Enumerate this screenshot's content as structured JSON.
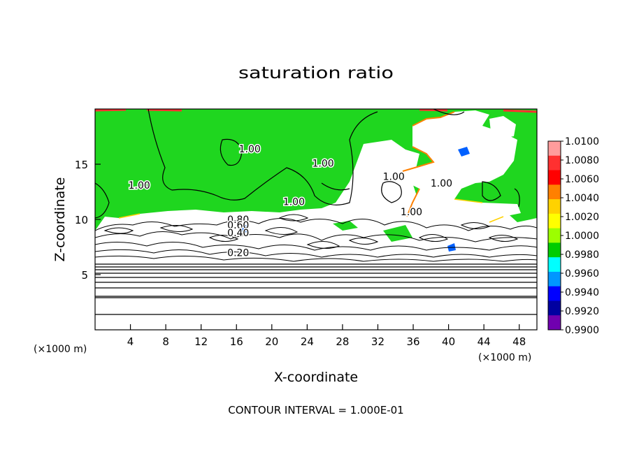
{
  "chart_data": {
    "type": "heatmap",
    "title": "saturation ratio",
    "xlabel": "X-coordinate",
    "ylabel": "Z-coordinate",
    "x_unit_left": "(×1000 m)",
    "x_unit_right": "(×1000 m)",
    "xlim": [
      0,
      50
    ],
    "ylim": [
      0,
      20
    ],
    "xticks": [
      4,
      8,
      12,
      16,
      20,
      24,
      28,
      32,
      36,
      40,
      44,
      48
    ],
    "yticks": [
      5,
      10,
      15
    ],
    "footer": "CONTOUR INTERVAL = 1.000E-01",
    "colorbar": {
      "labels": [
        "1.0100",
        "1.0080",
        "1.0060",
        "1.0040",
        "1.0020",
        "1.0000",
        "0.9980",
        "0.9960",
        "0.9940",
        "0.9920",
        "0.9900"
      ],
      "colors": [
        "#ff9c9c",
        "#ff3030",
        "#ff0000",
        "#ff8000",
        "#ffd200",
        "#ffff00",
        "#9cff00",
        "#00cc00",
        "#00ffff",
        "#0096ff",
        "#0000ff",
        "#0000a0",
        "#7000b0"
      ]
    },
    "contour_labels": [
      {
        "text": "1.00",
        "x": 17.5,
        "y": 16.4
      },
      {
        "text": "1.00",
        "x": 25.8,
        "y": 15.1
      },
      {
        "text": "1.00",
        "x": 33.8,
        "y": 13.9
      },
      {
        "text": "1.00",
        "x": 5.0,
        "y": 13.1
      },
      {
        "text": "1.00",
        "x": 39.2,
        "y": 13.3
      },
      {
        "text": "1.00",
        "x": 22.5,
        "y": 11.6
      },
      {
        "text": "1.00",
        "x": 35.8,
        "y": 10.7
      },
      {
        "text": "0.80",
        "x": 16.2,
        "y": 10.0
      },
      {
        "text": "0.60",
        "x": 16.2,
        "y": 9.5
      },
      {
        "text": "0.40",
        "x": 16.2,
        "y": 8.8
      },
      {
        "text": "0.20",
        "x": 16.2,
        "y": 7.0
      }
    ]
  }
}
